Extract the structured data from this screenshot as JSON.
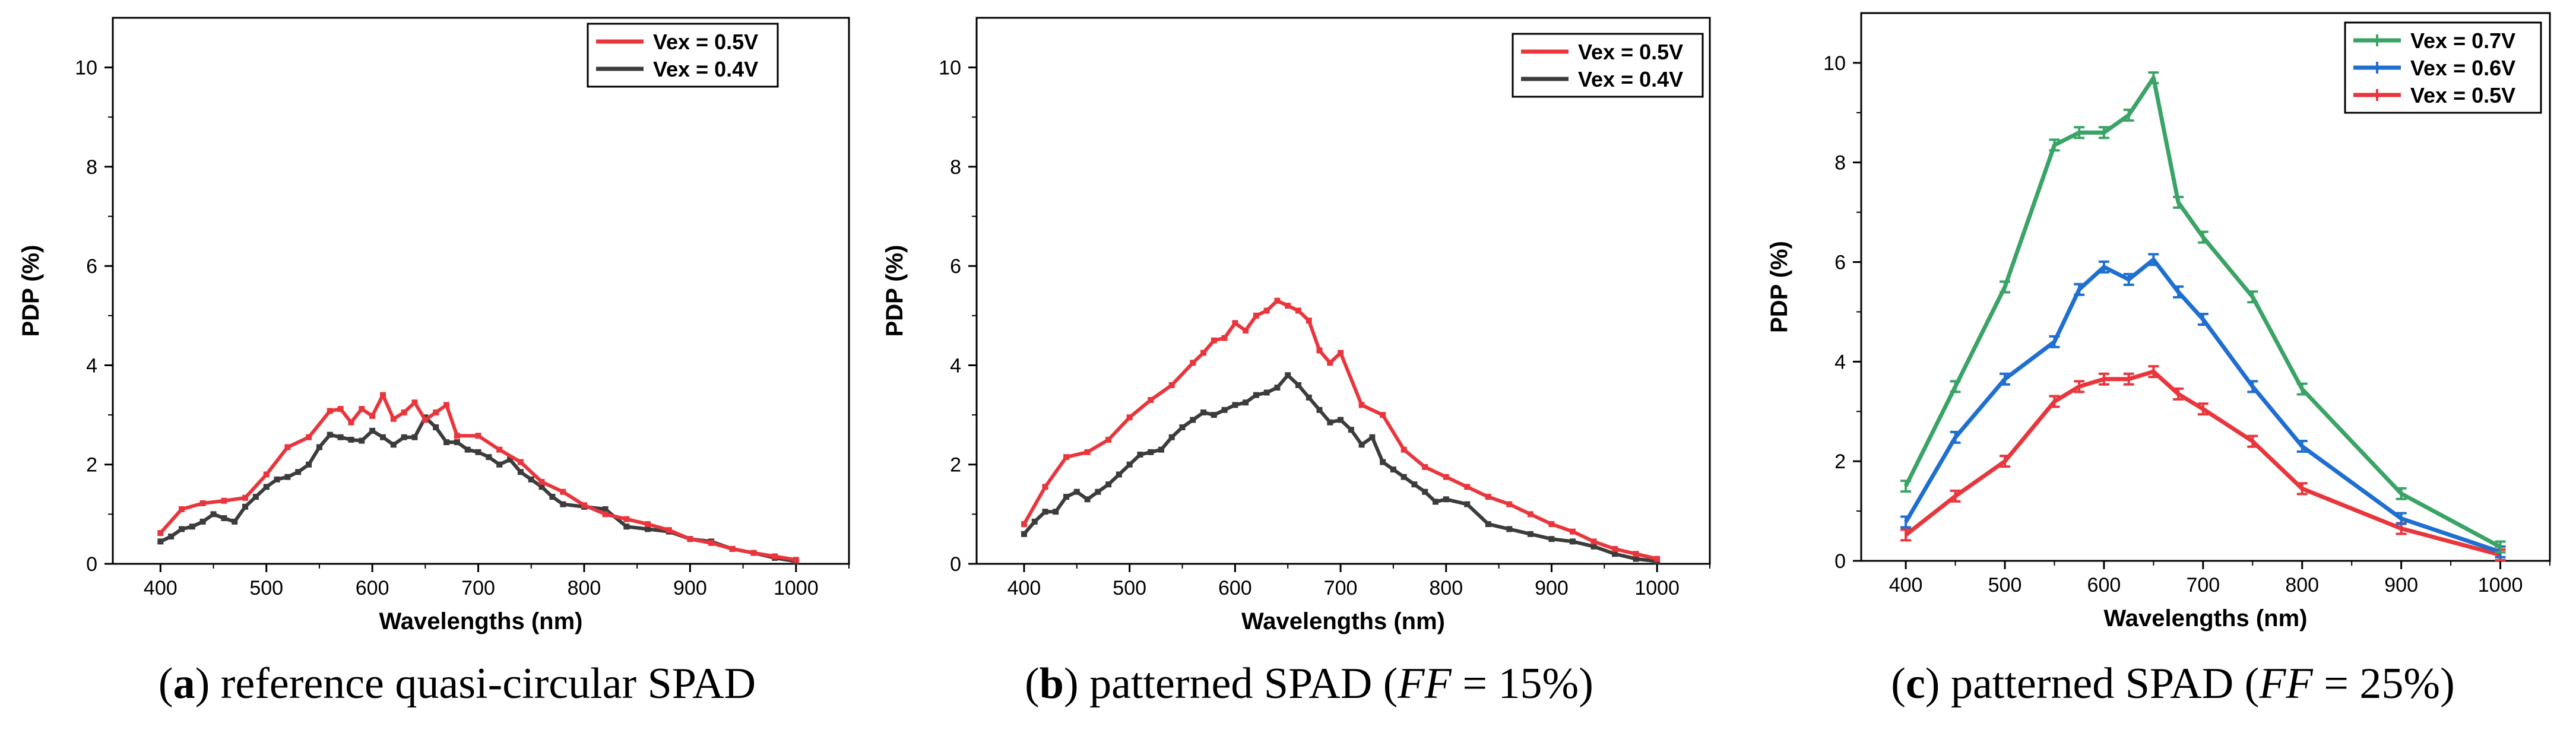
{
  "chart_data": [
    {
      "type": "line",
      "panel": "a",
      "xlabel": "Wavelengths (nm)",
      "ylabel": "PDP (%)",
      "xlim": [
        355,
        1050
      ],
      "ylim": [
        0,
        11
      ],
      "xticks": [
        400,
        500,
        600,
        700,
        800,
        900,
        1000
      ],
      "yticks": [
        0,
        2,
        4,
        6,
        8,
        10
      ],
      "legend_position": "top-right",
      "error_bars": false,
      "caption": {
        "label": "a",
        "text": ") reference quasi-circular SPAD"
      },
      "series": [
        {
          "name": "Vex = 0.5V",
          "color": "#e8363c",
          "x": [
            400,
            420,
            440,
            460,
            480,
            500,
            520,
            540,
            560,
            570,
            580,
            590,
            600,
            610,
            620,
            630,
            640,
            650,
            660,
            670,
            680,
            700,
            720,
            740,
            760,
            780,
            800,
            820,
            840,
            860,
            880,
            900,
            920,
            940,
            960,
            980,
            1000
          ],
          "y": [
            0.62,
            1.1,
            1.22,
            1.27,
            1.33,
            1.8,
            2.35,
            2.55,
            3.08,
            3.12,
            2.85,
            3.12,
            2.98,
            3.4,
            2.92,
            3.05,
            3.25,
            2.9,
            3.05,
            3.2,
            2.58,
            2.58,
            2.3,
            2.05,
            1.65,
            1.45,
            1.18,
            1.0,
            0.9,
            0.8,
            0.68,
            0.5,
            0.42,
            0.3,
            0.22,
            0.15,
            0.08
          ]
        },
        {
          "name": "Vex = 0.4V",
          "color": "#3c3c3c",
          "x": [
            400,
            410,
            420,
            430,
            440,
            450,
            460,
            470,
            480,
            490,
            500,
            510,
            520,
            530,
            540,
            550,
            560,
            570,
            580,
            590,
            600,
            610,
            620,
            630,
            640,
            650,
            660,
            670,
            680,
            690,
            700,
            710,
            720,
            730,
            740,
            750,
            760,
            770,
            780,
            800,
            820,
            840,
            860,
            880,
            900,
            920,
            940,
            960,
            980,
            1000
          ],
          "y": [
            0.45,
            0.55,
            0.7,
            0.75,
            0.85,
            1.0,
            0.92,
            0.85,
            1.15,
            1.35,
            1.55,
            1.7,
            1.75,
            1.85,
            2.0,
            2.35,
            2.6,
            2.55,
            2.5,
            2.48,
            2.68,
            2.55,
            2.4,
            2.55,
            2.55,
            2.95,
            2.75,
            2.45,
            2.45,
            2.3,
            2.25,
            2.15,
            2.0,
            2.1,
            1.85,
            1.7,
            1.55,
            1.35,
            1.2,
            1.15,
            1.1,
            0.75,
            0.7,
            0.65,
            0.5,
            0.45,
            0.3,
            0.22,
            0.12,
            0.05
          ]
        }
      ]
    },
    {
      "type": "line",
      "panel": "b",
      "xlabel": "Wavelengths (nm)",
      "ylabel": "PDP (%)",
      "xlim": [
        355,
        1050
      ],
      "ylim": [
        0,
        11
      ],
      "xticks": [
        400,
        500,
        600,
        700,
        800,
        900,
        1000
      ],
      "yticks": [
        0,
        2,
        4,
        6,
        8,
        10
      ],
      "legend_position": "top-right",
      "error_bars": false,
      "caption": {
        "label": "b",
        "text": ") patterned SPAD (",
        "ff": "FF",
        "rest": " = 15%)"
      },
      "series": [
        {
          "name": "Vex = 0.5V",
          "color": "#e8363c",
          "x": [
            400,
            420,
            440,
            460,
            480,
            500,
            520,
            540,
            560,
            570,
            580,
            590,
            600,
            610,
            620,
            630,
            640,
            650,
            660,
            670,
            680,
            690,
            700,
            720,
            740,
            760,
            780,
            800,
            820,
            840,
            860,
            880,
            900,
            920,
            940,
            960,
            980,
            1000
          ],
          "y": [
            0.8,
            1.55,
            2.15,
            2.25,
            2.5,
            2.95,
            3.3,
            3.6,
            4.05,
            4.25,
            4.5,
            4.55,
            4.85,
            4.7,
            5.0,
            5.1,
            5.3,
            5.2,
            5.1,
            4.9,
            4.3,
            4.05,
            4.25,
            3.2,
            3.0,
            2.3,
            1.95,
            1.75,
            1.55,
            1.35,
            1.2,
            1.0,
            0.8,
            0.65,
            0.45,
            0.3,
            0.2,
            0.1
          ]
        },
        {
          "name": "Vex = 0.4V",
          "color": "#3c3c3c",
          "x": [
            400,
            410,
            420,
            430,
            440,
            450,
            460,
            470,
            480,
            490,
            500,
            510,
            520,
            530,
            540,
            550,
            560,
            570,
            580,
            590,
            600,
            610,
            620,
            630,
            640,
            650,
            660,
            670,
            680,
            690,
            700,
            710,
            720,
            730,
            740,
            750,
            760,
            770,
            780,
            790,
            800,
            820,
            840,
            860,
            880,
            900,
            920,
            940,
            960,
            980,
            1000
          ],
          "y": [
            0.6,
            0.85,
            1.05,
            1.05,
            1.35,
            1.45,
            1.3,
            1.45,
            1.6,
            1.8,
            2.0,
            2.2,
            2.25,
            2.3,
            2.55,
            2.75,
            2.9,
            3.05,
            3.0,
            3.1,
            3.2,
            3.25,
            3.4,
            3.45,
            3.55,
            3.8,
            3.6,
            3.35,
            3.1,
            2.85,
            2.9,
            2.7,
            2.4,
            2.55,
            2.05,
            1.9,
            1.75,
            1.6,
            1.45,
            1.25,
            1.3,
            1.2,
            0.8,
            0.7,
            0.6,
            0.5,
            0.45,
            0.35,
            0.2,
            0.1,
            0.05
          ]
        }
      ]
    },
    {
      "type": "line",
      "panel": "c",
      "xlabel": "Wavelengths (nm)",
      "ylabel": "PDP (%)",
      "xlim": [
        355,
        1050
      ],
      "ylim": [
        0,
        11
      ],
      "xticks": [
        400,
        500,
        600,
        700,
        800,
        900,
        1000
      ],
      "yticks": [
        0,
        2,
        4,
        6,
        8,
        10
      ],
      "legend_position": "top-right",
      "error_bars": true,
      "caption": {
        "label": "c",
        "text": ") patterned SPAD (",
        "ff": "FF",
        "rest": " = 25%)"
      },
      "series": [
        {
          "name": "Vex = 0.7V",
          "color": "#3aa366",
          "x": [
            400,
            450,
            500,
            550,
            575,
            600,
            625,
            650,
            675,
            700,
            750,
            800,
            900,
            1000
          ],
          "y": [
            1.5,
            3.5,
            5.5,
            8.35,
            8.6,
            8.6,
            8.95,
            9.7,
            7.2,
            6.5,
            5.3,
            3.45,
            1.35,
            0.28
          ]
        },
        {
          "name": "Vex = 0.6V",
          "color": "#1f6fd0",
          "x": [
            400,
            450,
            500,
            550,
            575,
            600,
            625,
            650,
            675,
            700,
            750,
            800,
            900,
            1000
          ],
          "y": [
            0.78,
            2.48,
            3.65,
            4.4,
            5.45,
            5.9,
            5.65,
            6.05,
            5.4,
            4.85,
            3.5,
            2.3,
            0.85,
            0.18
          ]
        },
        {
          "name": "Vex = 0.5V",
          "color": "#e8363c",
          "x": [
            400,
            450,
            500,
            550,
            575,
            600,
            625,
            650,
            675,
            700,
            750,
            800,
            900,
            1000
          ],
          "y": [
            0.52,
            1.3,
            2.0,
            3.2,
            3.5,
            3.65,
            3.65,
            3.8,
            3.35,
            3.05,
            2.4,
            1.45,
            0.65,
            0.12
          ]
        }
      ]
    }
  ]
}
